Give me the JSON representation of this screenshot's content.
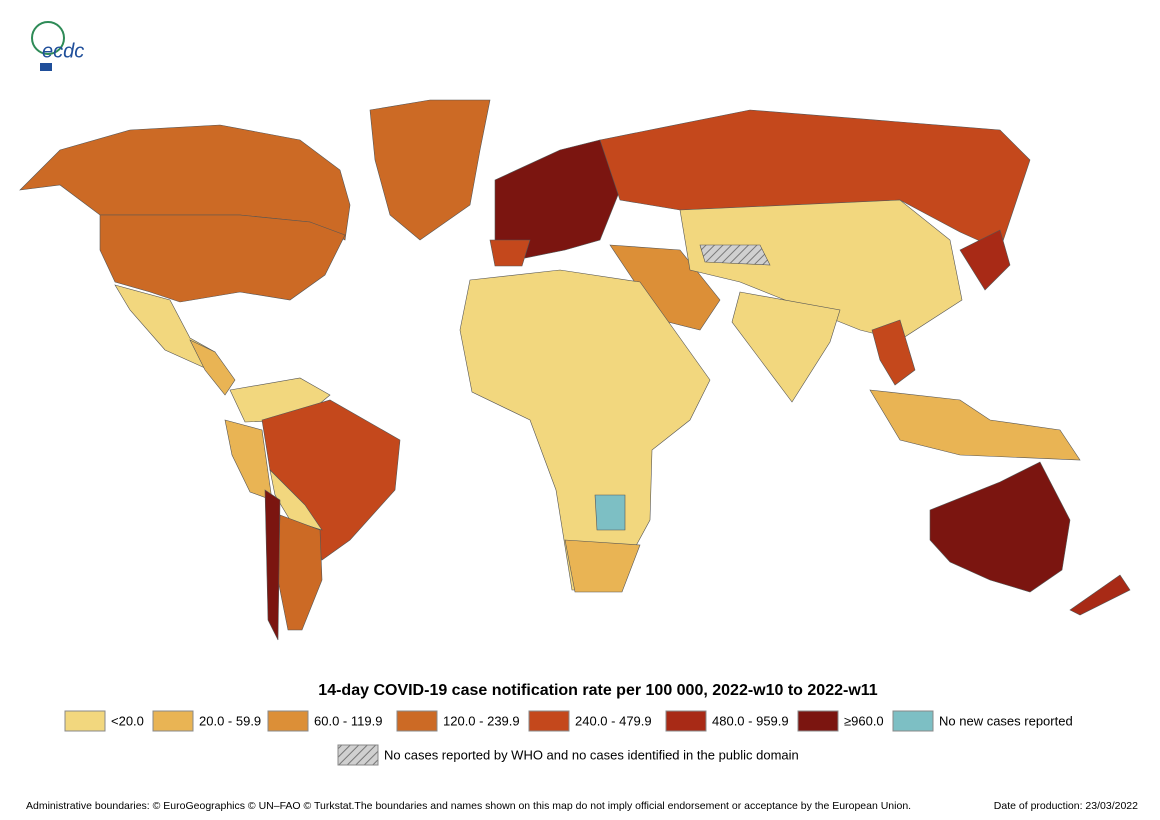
{
  "logo": "ecdc",
  "title": "14-day COVID-19 case notification rate per 100 000, 2022-w10 to 2022-w11",
  "legend": [
    {
      "label": "<20.0",
      "color": "#f2d77e"
    },
    {
      "label": "20.0 - 59.9",
      "color": "#e9b454"
    },
    {
      "label": "60.0 - 119.9",
      "color": "#dc8f37"
    },
    {
      "label": "120.0 - 239.9",
      "color": "#cc6a25"
    },
    {
      "label": "240.0 - 479.9",
      "color": "#c4481c"
    },
    {
      "label": "480.0 - 959.9",
      "color": "#a82a16"
    },
    {
      "label": "≥960.0",
      "color": "#7b1510"
    },
    {
      "label": "No new cases reported",
      "color": "#7dbfc4"
    }
  ],
  "hatched_label": "No cases reported by WHO and no cases identified in the public domain",
  "footer": "Administrative boundaries: © EuroGeographics © UN–FAO © Turkstat.The boundaries and names shown on this map do not imply official endorsement or acceptance by the European Union.",
  "date": "Date of production: 23/03/2022"
}
